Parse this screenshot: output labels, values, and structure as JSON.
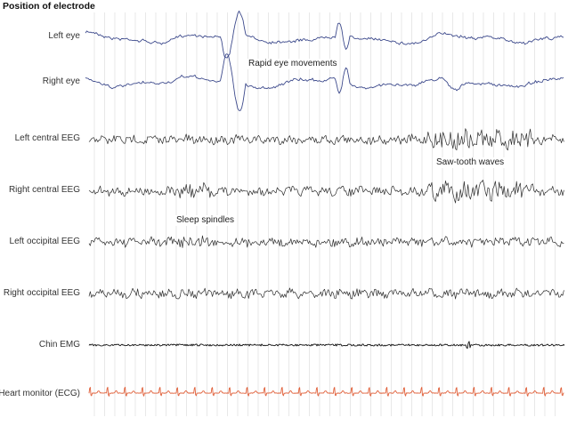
{
  "title": "Position of electrode",
  "channels": [
    {
      "label": "Left eye",
      "color": "#3d4a8c"
    },
    {
      "label": "Right eye",
      "color": "#3d4a8c"
    },
    {
      "label": "Left central EEG",
      "color": "#2b2b2b"
    },
    {
      "label": "Right central EEG",
      "color": "#2b2b2b"
    },
    {
      "label": "Left occipital EEG",
      "color": "#2b2b2b"
    },
    {
      "label": "Right occipital EEG",
      "color": "#2b2b2b"
    },
    {
      "label": "Chin EMG",
      "color": "#111111"
    },
    {
      "label": "Heart monitor (ECG)",
      "color": "#e0603a"
    }
  ],
  "annotations": {
    "rem": "Rapid eye movements",
    "sawtooth": "Saw-tooth waves",
    "spindles": "Sleep spindles"
  },
  "gridline_color": "#d8d8d8"
}
